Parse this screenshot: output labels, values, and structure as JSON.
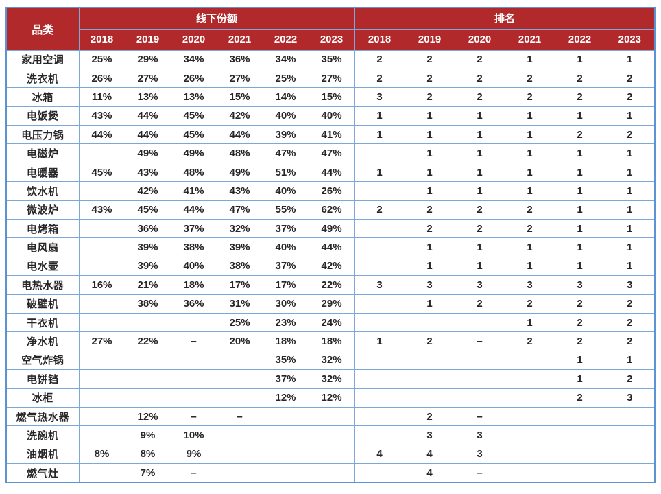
{
  "colors": {
    "header_bg": "#b2292b",
    "header_text": "#ffffff",
    "grid_border": "#7ba7da",
    "outer_border": "#5b93d3",
    "cell_text": "#262626",
    "background": "#ffffff"
  },
  "chart_data": {
    "type": "table",
    "category_header": "品类",
    "column_groups": [
      {
        "label": "线下份额",
        "span": 6
      },
      {
        "label": "排名",
        "span": 6
      }
    ],
    "years": [
      "2018",
      "2019",
      "2020",
      "2021",
      "2022",
      "2023"
    ],
    "rows": [
      {
        "category": "家用空调",
        "share": [
          "25%",
          "29%",
          "34%",
          "36%",
          "34%",
          "35%"
        ],
        "rank": [
          "2",
          "2",
          "2",
          "1",
          "1",
          "1"
        ]
      },
      {
        "category": "洗衣机",
        "share": [
          "26%",
          "27%",
          "26%",
          "27%",
          "25%",
          "27%"
        ],
        "rank": [
          "2",
          "2",
          "2",
          "2",
          "2",
          "2"
        ]
      },
      {
        "category": "冰箱",
        "share": [
          "11%",
          "13%",
          "13%",
          "15%",
          "14%",
          "15%"
        ],
        "rank": [
          "3",
          "2",
          "2",
          "2",
          "2",
          "2"
        ]
      },
      {
        "category": "电饭煲",
        "share": [
          "43%",
          "44%",
          "45%",
          "42%",
          "40%",
          "40%"
        ],
        "rank": [
          "1",
          "1",
          "1",
          "1",
          "1",
          "1"
        ]
      },
      {
        "category": "电压力锅",
        "share": [
          "44%",
          "44%",
          "45%",
          "44%",
          "39%",
          "41%"
        ],
        "rank": [
          "1",
          "1",
          "1",
          "1",
          "2",
          "2"
        ]
      },
      {
        "category": "电磁炉",
        "share": [
          "",
          "49%",
          "49%",
          "48%",
          "47%",
          "47%"
        ],
        "rank": [
          "",
          "1",
          "1",
          "1",
          "1",
          "1"
        ]
      },
      {
        "category": "电暖器",
        "share": [
          "45%",
          "43%",
          "48%",
          "49%",
          "51%",
          "44%"
        ],
        "rank": [
          "1",
          "1",
          "1",
          "1",
          "1",
          "1"
        ]
      },
      {
        "category": "饮水机",
        "share": [
          "",
          "42%",
          "41%",
          "43%",
          "40%",
          "26%"
        ],
        "rank": [
          "",
          "1",
          "1",
          "1",
          "1",
          "1"
        ]
      },
      {
        "category": "微波炉",
        "share": [
          "43%",
          "45%",
          "44%",
          "47%",
          "55%",
          "62%"
        ],
        "rank": [
          "2",
          "2",
          "2",
          "2",
          "1",
          "1"
        ]
      },
      {
        "category": "电烤箱",
        "share": [
          "",
          "36%",
          "37%",
          "32%",
          "37%",
          "49%"
        ],
        "rank": [
          "",
          "2",
          "2",
          "2",
          "1",
          "1"
        ]
      },
      {
        "category": "电风扇",
        "share": [
          "",
          "39%",
          "38%",
          "39%",
          "40%",
          "44%"
        ],
        "rank": [
          "",
          "1",
          "1",
          "1",
          "1",
          "1"
        ]
      },
      {
        "category": "电水壶",
        "share": [
          "",
          "39%",
          "40%",
          "38%",
          "37%",
          "42%"
        ],
        "rank": [
          "",
          "1",
          "1",
          "1",
          "1",
          "1"
        ]
      },
      {
        "category": "电热水器",
        "share": [
          "16%",
          "21%",
          "18%",
          "17%",
          "17%",
          "22%"
        ],
        "rank": [
          "3",
          "3",
          "3",
          "3",
          "3",
          "3"
        ]
      },
      {
        "category": "破壁机",
        "share": [
          "",
          "38%",
          "36%",
          "31%",
          "30%",
          "29%"
        ],
        "rank": [
          "",
          "1",
          "2",
          "2",
          "2",
          "2"
        ]
      },
      {
        "category": "干衣机",
        "share": [
          "",
          "",
          "",
          "25%",
          "23%",
          "24%"
        ],
        "rank": [
          "",
          "",
          "",
          "1",
          "2",
          "2"
        ]
      },
      {
        "category": "净水机",
        "share": [
          "27%",
          "22%",
          "–",
          "20%",
          "18%",
          "18%"
        ],
        "rank": [
          "1",
          "2",
          "–",
          "2",
          "2",
          "2"
        ]
      },
      {
        "category": "空气炸锅",
        "share": [
          "",
          "",
          "",
          "",
          "35%",
          "32%"
        ],
        "rank": [
          "",
          "",
          "",
          "",
          "1",
          "1"
        ]
      },
      {
        "category": "电饼铛",
        "share": [
          "",
          "",
          "",
          "",
          "37%",
          "32%"
        ],
        "rank": [
          "",
          "",
          "",
          "",
          "1",
          "2"
        ]
      },
      {
        "category": "冰柜",
        "share": [
          "",
          "",
          "",
          "",
          "12%",
          "12%"
        ],
        "rank": [
          "",
          "",
          "",
          "",
          "2",
          "3"
        ]
      },
      {
        "category": "燃气热水器",
        "share": [
          "",
          "12%",
          "–",
          "–",
          "",
          ""
        ],
        "rank": [
          "",
          "2",
          "–",
          "",
          "",
          ""
        ]
      },
      {
        "category": "洗碗机",
        "share": [
          "",
          "9%",
          "10%",
          "",
          "",
          ""
        ],
        "rank": [
          "",
          "3",
          "3",
          "",
          "",
          ""
        ]
      },
      {
        "category": "油烟机",
        "share": [
          "8%",
          "8%",
          "9%",
          "",
          "",
          ""
        ],
        "rank": [
          "4",
          "4",
          "3",
          "",
          "",
          ""
        ]
      },
      {
        "category": "燃气灶",
        "share": [
          "",
          "7%",
          "–",
          "",
          "",
          ""
        ],
        "rank": [
          "",
          "4",
          "–",
          "",
          "",
          ""
        ]
      }
    ]
  }
}
